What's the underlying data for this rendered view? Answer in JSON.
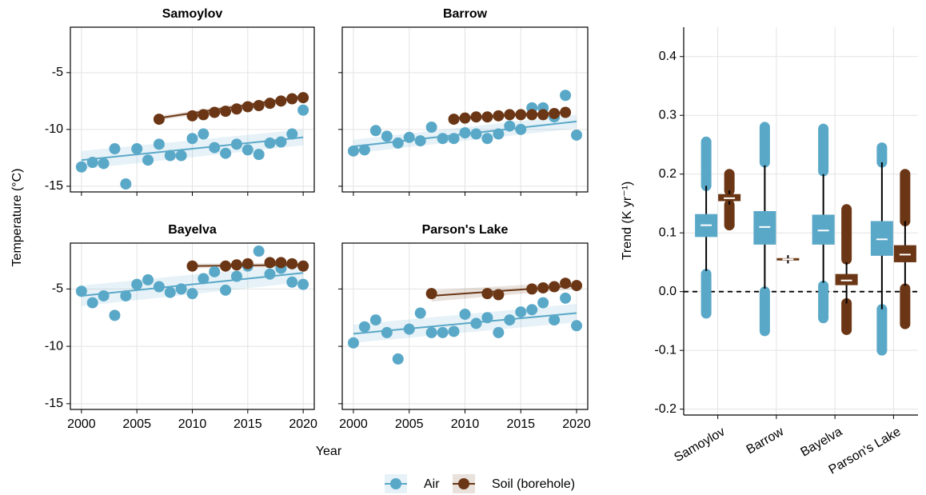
{
  "shared": {
    "x_label": "Year",
    "y_label": "Temperature (°C)"
  },
  "chart_data": [
    {
      "type": "scatter",
      "title": "Samoylov",
      "xlim": [
        1999,
        2021
      ],
      "ylim": [
        -15.5,
        -1
      ],
      "xticks": [
        2000,
        2005,
        2010,
        2015,
        2020
      ],
      "yticks": [
        -15,
        -10,
        -5
      ],
      "grid": true,
      "series": [
        {
          "name": "Air",
          "color": "#5aa8c8",
          "x": [
            2000,
            2001,
            2002,
            2003,
            2004,
            2005,
            2006,
            2007,
            2008,
            2009,
            2010,
            2011,
            2012,
            2013,
            2014,
            2015,
            2016,
            2017,
            2018,
            2019,
            2020
          ],
          "values": [
            -13.3,
            -12.9,
            -13.0,
            -11.7,
            -14.8,
            -11.7,
            -12.7,
            -11.3,
            -12.3,
            -12.3,
            -10.8,
            -10.4,
            -11.6,
            -12.1,
            -11.3,
            -11.8,
            -12.2,
            -11.2,
            -11.1,
            -10.4,
            -8.3
          ],
          "fit": {
            "x": [
              2000,
              2020
            ],
            "values": [
              -12.7,
              -10.7
            ],
            "lower": [
              -13.5,
              -11.4
            ],
            "upper": [
              -11.9,
              -10.0
            ]
          }
        },
        {
          "name": "Soil (borehole)",
          "color": "#6b3615",
          "x": [
            2007,
            2010,
            2011,
            2012,
            2013,
            2014,
            2015,
            2016,
            2017,
            2018,
            2019,
            2020
          ],
          "values": [
            -9.1,
            -8.8,
            -8.7,
            -8.5,
            -8.4,
            -8.2,
            -8.0,
            -7.9,
            -7.7,
            -7.5,
            -7.3,
            -7.2
          ],
          "fit": {
            "x": [
              2007,
              2020
            ],
            "values": [
              -9.0,
              -7.1
            ],
            "lower": [
              -9.2,
              -7.3
            ],
            "upper": [
              -8.8,
              -6.9
            ]
          }
        }
      ]
    },
    {
      "type": "scatter",
      "title": "Barrow",
      "xlim": [
        1999,
        2021
      ],
      "ylim": [
        -15.5,
        -1
      ],
      "xticks": [
        2000,
        2005,
        2010,
        2015,
        2020
      ],
      "yticks": [
        -15,
        -10,
        -5
      ],
      "grid": true,
      "series": [
        {
          "name": "Air",
          "color": "#5aa8c8",
          "x": [
            2000,
            2001,
            2002,
            2003,
            2004,
            2005,
            2006,
            2007,
            2008,
            2009,
            2010,
            2011,
            2012,
            2013,
            2014,
            2015,
            2016,
            2017,
            2018,
            2019,
            2020
          ],
          "values": [
            -11.9,
            -11.8,
            -10.1,
            -10.6,
            -11.2,
            -10.7,
            -11.0,
            -9.8,
            -10.8,
            -10.8,
            -10.3,
            -10.4,
            -10.8,
            -10.4,
            -9.7,
            -10.0,
            -8.1,
            -8.1,
            -8.9,
            -7.0,
            -10.5
          ],
          "fit": {
            "x": [
              2000,
              2020
            ],
            "values": [
              -11.5,
              -9.3
            ],
            "lower": [
              -12.1,
              -9.9
            ],
            "upper": [
              -10.9,
              -8.7
            ]
          }
        },
        {
          "name": "Soil (borehole)",
          "color": "#6b3615",
          "x": [
            2009,
            2010,
            2011,
            2012,
            2013,
            2014,
            2015,
            2016,
            2017,
            2018,
            2019
          ],
          "values": [
            -9.1,
            -9.0,
            -8.9,
            -8.9,
            -8.8,
            -8.7,
            -8.7,
            -8.7,
            -8.7,
            -8.6,
            -8.5
          ],
          "fit": {
            "x": [
              2009,
              2019
            ],
            "values": [
              -9.0,
              -8.5
            ],
            "lower": [
              -9.1,
              -8.6
            ],
            "upper": [
              -8.9,
              -8.4
            ]
          }
        }
      ]
    },
    {
      "type": "scatter",
      "title": "Bayelva",
      "xlim": [
        1999,
        2021
      ],
      "ylim": [
        -15.5,
        -1
      ],
      "xticks": [
        2000,
        2005,
        2010,
        2015,
        2020
      ],
      "yticks": [
        -15,
        -10,
        -5
      ],
      "grid": true,
      "series": [
        {
          "name": "Air",
          "color": "#5aa8c8",
          "x": [
            2000,
            2001,
            2002,
            2003,
            2004,
            2005,
            2006,
            2007,
            2008,
            2009,
            2010,
            2011,
            2012,
            2013,
            2014,
            2015,
            2016,
            2017,
            2018,
            2019,
            2020
          ],
          "values": [
            -5.2,
            -6.2,
            -5.6,
            -7.3,
            -5.6,
            -4.6,
            -4.2,
            -4.8,
            -5.3,
            -5.0,
            -5.4,
            -4.1,
            -3.5,
            -5.1,
            -3.9,
            -3.0,
            -1.7,
            -3.7,
            -3.2,
            -4.4,
            -4.6
          ],
          "fit": {
            "x": [
              2000,
              2020
            ],
            "values": [
              -5.6,
              -3.6
            ],
            "lower": [
              -6.5,
              -4.4
            ],
            "upper": [
              -4.7,
              -2.8
            ]
          }
        },
        {
          "name": "Soil (borehole)",
          "color": "#6b3615",
          "x": [
            2010,
            2013,
            2014,
            2015,
            2017,
            2018,
            2019,
            2020
          ],
          "values": [
            -3.0,
            -3.0,
            -2.9,
            -2.8,
            -2.7,
            -2.7,
            -2.8,
            -3.0
          ],
          "fit": {
            "x": [
              2010,
              2020
            ],
            "values": [
              -3.0,
              -2.9
            ],
            "lower": [
              -3.2,
              -3.1
            ],
            "upper": [
              -2.8,
              -2.7
            ]
          }
        }
      ]
    },
    {
      "type": "scatter",
      "title": "Parson's Lake",
      "xlim": [
        1999,
        2021
      ],
      "ylim": [
        -15.5,
        -1
      ],
      "xticks": [
        2000,
        2005,
        2010,
        2015,
        2020
      ],
      "yticks": [
        -15,
        -10,
        -5
      ],
      "grid": true,
      "series": [
        {
          "name": "Air",
          "color": "#5aa8c8",
          "x": [
            2000,
            2001,
            2002,
            2003,
            2004,
            2005,
            2006,
            2007,
            2008,
            2009,
            2010,
            2011,
            2012,
            2013,
            2014,
            2015,
            2016,
            2017,
            2018,
            2019,
            2020
          ],
          "values": [
            -9.7,
            -8.3,
            -7.7,
            -8.8,
            -11.1,
            -8.5,
            -7.1,
            -8.8,
            -8.8,
            -8.7,
            -7.2,
            -8.0,
            -7.5,
            -8.8,
            -7.7,
            -7.0,
            -6.8,
            -6.2,
            -7.7,
            -5.8,
            -8.2
          ],
          "fit": {
            "x": [
              2000,
              2020
            ],
            "values": [
              -8.9,
              -7.1
            ],
            "lower": [
              -9.7,
              -7.9
            ],
            "upper": [
              -8.1,
              -6.3
            ]
          }
        },
        {
          "name": "Soil (borehole)",
          "color": "#6b3615",
          "x": [
            2007,
            2012,
            2013,
            2016,
            2017,
            2018,
            2019,
            2020
          ],
          "values": [
            -5.4,
            -5.4,
            -5.5,
            -5.0,
            -4.9,
            -4.8,
            -4.5,
            -4.7
          ],
          "fit": {
            "x": [
              2007,
              2020
            ],
            "values": [
              -5.6,
              -4.7
            ],
            "lower": [
              -6.1,
              -5.0
            ],
            "upper": [
              -5.1,
              -4.4
            ]
          }
        }
      ]
    },
    {
      "type": "box",
      "y_label": "Trend (K yr⁻¹)",
      "ylim": [
        -0.21,
        0.45
      ],
      "yticks": [
        -0.2,
        -0.1,
        {
          "value": 0,
          "label": "0.0"
        },
        0.1,
        0.2,
        0.3,
        0.4
      ],
      "grid": true,
      "hline": 0,
      "categories": [
        "Samoylov",
        "Barrow",
        "Bayelva",
        "Parson's Lake"
      ],
      "series": [
        {
          "name": "Air",
          "color": "#5aa8c8",
          "q1": [
            0.093,
            0.08,
            0.08,
            0.061
          ],
          "median": [
            0.113,
            0.11,
            0.104,
            0.089
          ],
          "q3": [
            0.132,
            0.137,
            0.131,
            0.12
          ],
          "whisker_low": [
            0.035,
            0.005,
            0.015,
            -0.03
          ],
          "whisker_high": [
            0.18,
            0.215,
            0.2,
            0.22
          ],
          "outliers_low": [
            [
              -0.037,
              0.03
            ],
            [
              -0.067,
              0.0
            ],
            [
              -0.045,
              0.01
            ],
            [
              -0.1,
              -0.03
            ]
          ],
          "outliers_high": [
            [
              0.18,
              0.255
            ],
            [
              0.22,
              0.28
            ],
            [
              0.205,
              0.277
            ],
            [
              0.22,
              0.245
            ]
          ]
        },
        {
          "name": "Soil (borehole)",
          "color": "#6b3615",
          "q1": [
            0.154,
            0.053,
            0.011,
            0.05
          ],
          "median": [
            0.159,
            0.055,
            0.019,
            0.063
          ],
          "q3": [
            0.166,
            0.057,
            0.03,
            0.079
          ],
          "whisker_low": [
            0.148,
            0.048,
            -0.02,
            0.01
          ],
          "whisker_high": [
            0.172,
            0.062,
            0.05,
            0.12
          ],
          "outliers_low": [
            [
              0.113,
              0.148
            ],
            null,
            [
              -0.065,
              -0.02
            ],
            [
              -0.055,
              0.005
            ]
          ],
          "outliers_high": [
            [
              0.172,
              0.2
            ],
            null,
            [
              0.055,
              0.14
            ],
            [
              0.12,
              0.2
            ]
          ]
        }
      ]
    }
  ]
}
